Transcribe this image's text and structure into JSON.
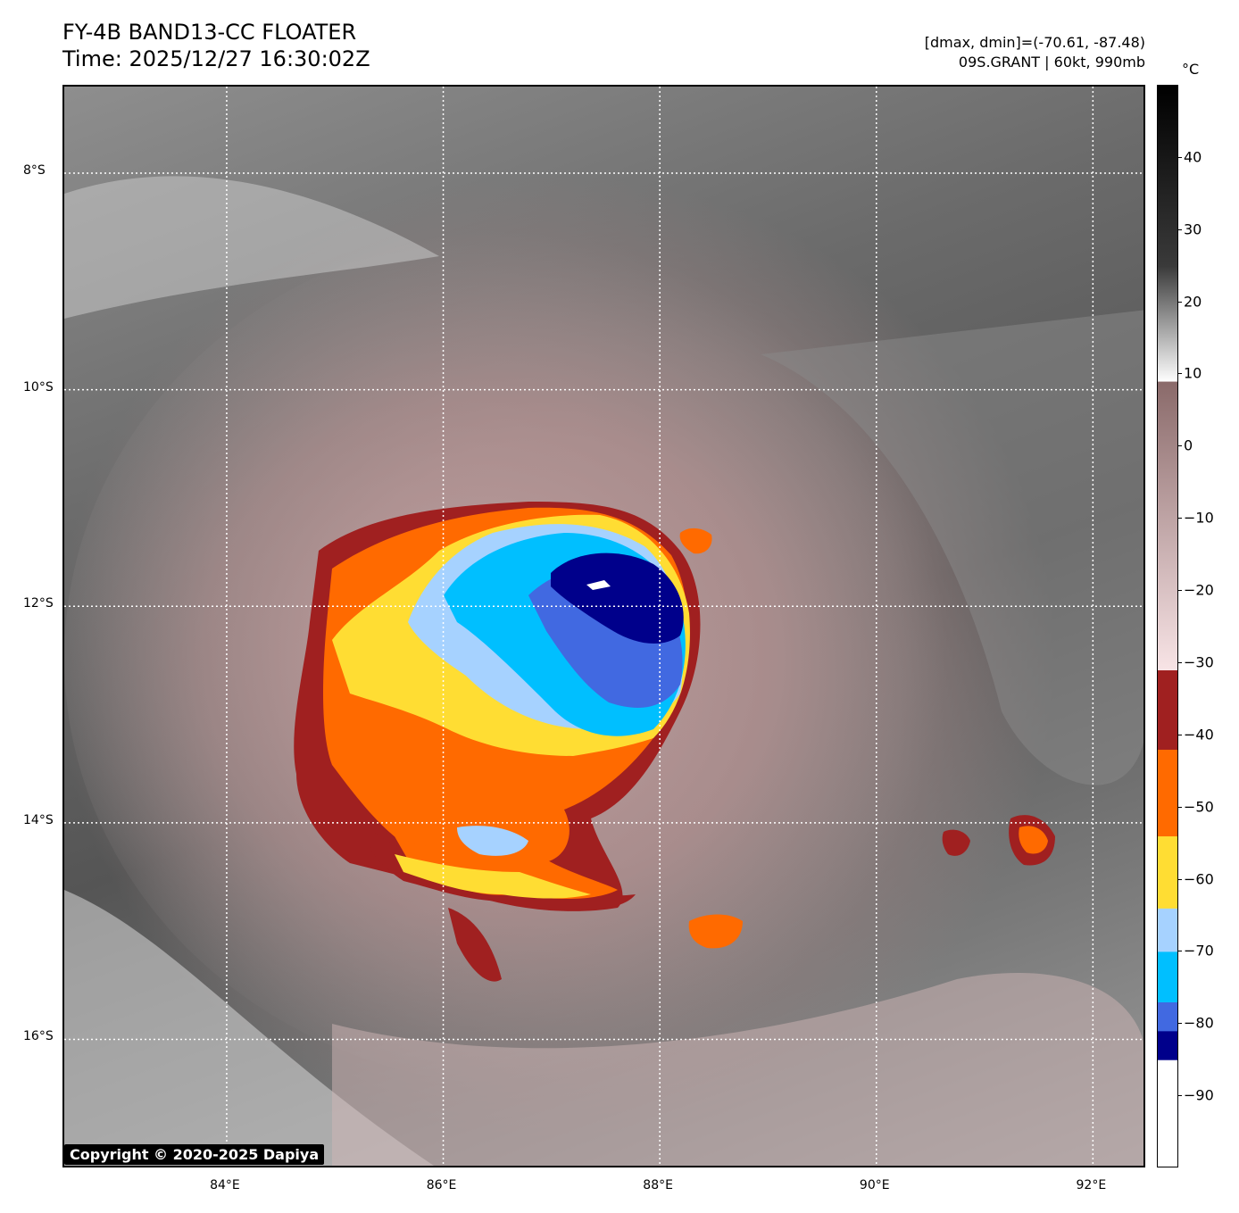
{
  "title": {
    "line1": "FY-4B BAND13-CC FLOATER",
    "line2": "Time: 2025/12/27 16:30:02Z"
  },
  "info": {
    "line1": "[dmax, dmin]=(-70.61, -87.48)",
    "line2": "09S.GRANT | 60kt, 990mb"
  },
  "copyright": "Copyright © 2020-2025 Dapiya",
  "axes": {
    "lat_labels": [
      {
        "label": "8°S",
        "value": -8
      },
      {
        "label": "10°S",
        "value": -10
      },
      {
        "label": "12°S",
        "value": -12
      },
      {
        "label": "14°S",
        "value": -14
      },
      {
        "label": "16°S",
        "value": -16
      }
    ],
    "lon_labels": [
      {
        "label": "84°E",
        "value": 84
      },
      {
        "label": "86°E",
        "value": 86
      },
      {
        "label": "88°E",
        "value": 88
      },
      {
        "label": "90°E",
        "value": 90
      },
      {
        "label": "92°E",
        "value": 92
      }
    ],
    "lon_range": [
      82.5,
      92.5
    ],
    "lat_range": [
      -7.2,
      -17.2
    ]
  },
  "colorbar": {
    "unit": "°C",
    "range": [
      -100,
      50
    ],
    "ticks": [
      "40",
      "30",
      "20",
      "10",
      "0",
      "−10",
      "−20",
      "−30",
      "−40",
      "−50",
      "−60",
      "−70",
      "−80",
      "−90"
    ],
    "tick_values": [
      40,
      30,
      20,
      10,
      0,
      -10,
      -20,
      -30,
      -40,
      -50,
      -60,
      -70,
      -80,
      -90
    ],
    "segments": [
      {
        "from": 50,
        "to": 25,
        "color": "#000000",
        "to_color": "#3a3a3a"
      },
      {
        "from": 25,
        "to": 9,
        "color": "#3a3a3a",
        "to_color": "#ffffff"
      },
      {
        "from": 9,
        "to": -31,
        "color": "#8a6a6a",
        "to_color": "#f8e4e6"
      },
      {
        "from": -31,
        "to": -42,
        "color": "#a02020"
      },
      {
        "from": -42,
        "to": -54,
        "color": "#ff6a00"
      },
      {
        "from": -54,
        "to": -64,
        "color": "#ffdd33"
      },
      {
        "from": -64,
        "to": -70,
        "color": "#a6d2ff"
      },
      {
        "from": -70,
        "to": -77,
        "color": "#00bfff"
      },
      {
        "from": -77,
        "to": -81,
        "color": "#4169e1"
      },
      {
        "from": -81,
        "to": -85,
        "color": "#00008b"
      },
      {
        "from": -85,
        "to": -100,
        "color": "#ffffff"
      }
    ]
  },
  "storm": {
    "colors": {
      "brown": "#a02020",
      "orange": "#ff6a00",
      "yellow": "#ffdd33",
      "lightblue": "#a6d2ff",
      "cyan": "#00bfff",
      "royal": "#4169e1",
      "navy": "#00008b"
    }
  }
}
